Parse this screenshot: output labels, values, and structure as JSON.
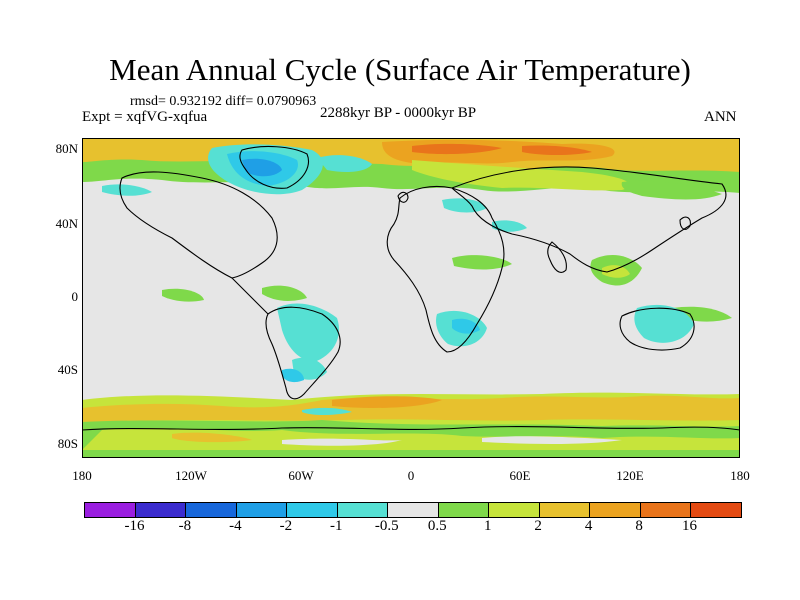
{
  "title": "Mean Annual Cycle (Surface Air Temperature)",
  "stats": "rmsd= 0.932192 diff= 0.0790963",
  "expt": "Expt = xqfVG-xqfua",
  "period": "2288kyr BP - 0000kyr BP",
  "season": "ANN",
  "lat_labels": [
    "80N",
    "40N",
    "0",
    "40S",
    "80S"
  ],
  "lon_labels": [
    "180",
    "120W",
    "60W",
    "0",
    "60E",
    "120E",
    "180"
  ],
  "colorbar": {
    "labels": [
      "-16",
      "-8",
      "-4",
      "-2",
      "-1",
      "-0.5",
      "0.5",
      "1",
      "2",
      "4",
      "8",
      "16"
    ],
    "colors": [
      "#9a1ee0",
      "#3b2ccf",
      "#1767db",
      "#1f9fe6",
      "#2fc9e8",
      "#56e0d3",
      "#e6e6e6",
      "#7fd94a",
      "#c6e43b",
      "#e7c12e",
      "#eba320",
      "#e9741b",
      "#e34a12"
    ]
  }
}
